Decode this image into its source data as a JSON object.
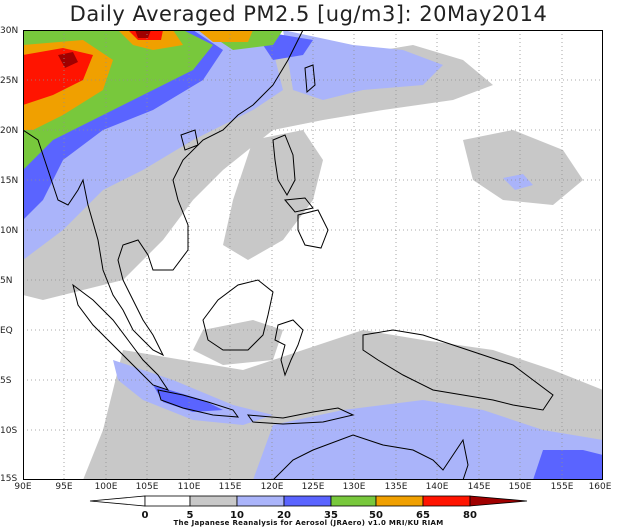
{
  "title": "Daily Averaged PM2.5 [ug/m3]: 20May2014",
  "colors": {
    "level_5": "#ffffff",
    "level_10": "#c8c8c8",
    "level_20": "#aab4fa",
    "level_35": "#5a64ff",
    "level_50": "#78c83c",
    "level_65": "#f0a000",
    "level_80": "#ff1400",
    "level_max": "#a00000",
    "coastline": "#000000",
    "grid": "#909090"
  },
  "latitude_labels": [
    "30N",
    "25N",
    "20N",
    "15N",
    "10N",
    "5N",
    "EQ",
    "5S",
    "10S",
    "15S"
  ],
  "longitude_labels": [
    "90E",
    "95E",
    "100E",
    "105E",
    "110E",
    "115E",
    "120E",
    "125E",
    "130E",
    "135E",
    "140E",
    "145E",
    "150E",
    "155E",
    "160E"
  ],
  "colorbar": {
    "ticks": [
      "0",
      "5",
      "10",
      "20",
      "35",
      "50",
      "65",
      "80"
    ],
    "credit": "The Japanese Reanalysis for Aerosol (JRAero) v1.0 MRI/KU RIAM"
  }
}
